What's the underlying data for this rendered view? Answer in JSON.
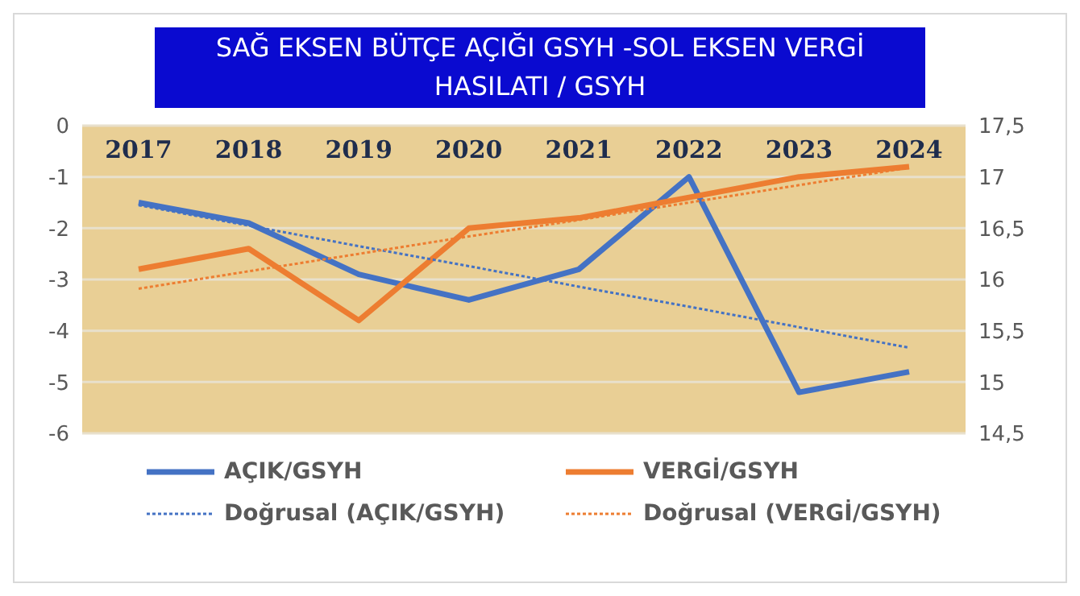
{
  "chart_data": {
    "type": "line",
    "title": "SAĞ EKSEN BÜTÇE AÇIĞI GSYH -SOL EKSEN VERGİ HASILATI / GSYH",
    "categories": [
      "2017",
      "2018",
      "2019",
      "2020",
      "2021",
      "2022",
      "2023",
      "2024"
    ],
    "series": [
      {
        "name": "AÇIK/GSYH",
        "color": "#4472c4",
        "line_style": "solid",
        "values": [
          -1.5,
          -1.9,
          -2.9,
          -3.4,
          -2.8,
          -1.0,
          -5.2,
          -4.8
        ]
      },
      {
        "name": "VERGİ/GSYH",
        "color": "#ed7d31",
        "line_style": "solid",
        "axis": "y2",
        "values": [
          16.1,
          16.3,
          15.6,
          16.5,
          16.6,
          16.8,
          17.0,
          17.1
        ]
      },
      {
        "name": "Doğrusal (AÇIK/GSYH)",
        "color": "#4472c4",
        "line_style": "dotted",
        "values": [
          -1.55,
          -1.95,
          -2.35,
          -2.74,
          -3.14,
          -3.53,
          -3.93,
          -4.33
        ]
      },
      {
        "name": "Doğrusal (VERGİ/GSYH)",
        "color": "#ed7d31",
        "line_style": "dotted",
        "axis": "y2",
        "values": [
          15.91,
          16.08,
          16.25,
          16.42,
          16.58,
          16.75,
          16.92,
          17.09
        ]
      }
    ],
    "ylim": [
      -6,
      0
    ],
    "yticks": [
      -6,
      -5,
      -4,
      -3,
      -2,
      -1,
      0
    ],
    "y2lim": [
      14.5,
      17.5
    ],
    "y2ticks": [
      {
        "value": 14.5,
        "label": "14,5"
      },
      15,
      {
        "value": 15.5,
        "label": "15,5"
      },
      16,
      {
        "value": 16.5,
        "label": "16,5"
      },
      17,
      {
        "value": 17.5,
        "label": "17,5"
      }
    ],
    "grid": "y",
    "legend": "bottom",
    "marker": "none"
  }
}
